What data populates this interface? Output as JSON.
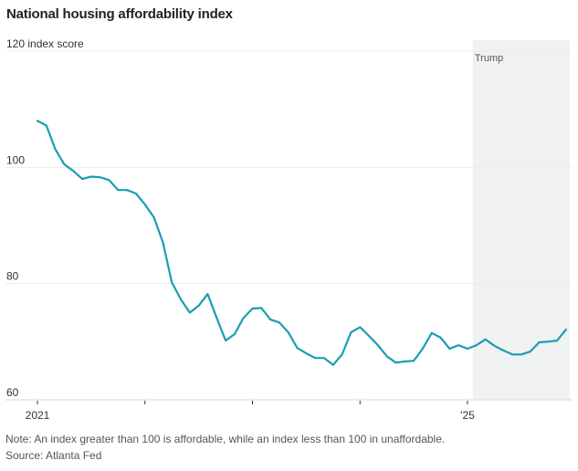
{
  "chart_data": {
    "type": "line",
    "title": "National housing affordability index",
    "ylabel": "index score",
    "xlabel": "",
    "ylim": [
      60,
      120
    ],
    "yticks": [
      {
        "value": 120,
        "label": "120 index score"
      },
      {
        "value": 100,
        "label": "100"
      },
      {
        "value": 80,
        "label": "80"
      },
      {
        "value": 60,
        "label": "60"
      }
    ],
    "xlim": [
      2021.0,
      2025.95
    ],
    "xticks": [
      {
        "value": 2021,
        "label": "2021"
      },
      {
        "value": 2022,
        "label": ""
      },
      {
        "value": 2023,
        "label": ""
      },
      {
        "value": 2024,
        "label": ""
      },
      {
        "value": 2025,
        "label": "'25"
      }
    ],
    "grid": true,
    "line_color": "#1a9db3",
    "shaded_region": {
      "label": "Trump",
      "x_start": 2025.05,
      "x_end": 2025.95,
      "color": "#f0f1f1"
    },
    "series": [
      {
        "name": "National housing affordability index",
        "x_start": 2021.0,
        "x_step_months": 1,
        "values": [
          108.0,
          107.2,
          103.1,
          100.5,
          99.4,
          98.0,
          98.4,
          98.3,
          97.8,
          96.1,
          96.1,
          95.5,
          93.6,
          91.4,
          87.1,
          80.2,
          77.3,
          75.0,
          76.2,
          78.2,
          74.1,
          70.2,
          71.3,
          74.1,
          75.7,
          75.8,
          73.8,
          73.3,
          71.6,
          68.9,
          68.0,
          67.2,
          67.2,
          66.0,
          67.8,
          71.6,
          72.5,
          71.0,
          69.4,
          67.5,
          66.4,
          66.6,
          66.7,
          68.8,
          71.5,
          70.7,
          68.8,
          69.4,
          68.8,
          69.4,
          70.4,
          69.3,
          68.5,
          67.8,
          67.8,
          68.3,
          69.9,
          70.0,
          70.2,
          72.1
        ]
      }
    ]
  },
  "footer": {
    "note": "Note: An index greater than 100 is affordable, while an index less than 100 in unaffordable.",
    "source": "Source: Atlanta Fed"
  }
}
